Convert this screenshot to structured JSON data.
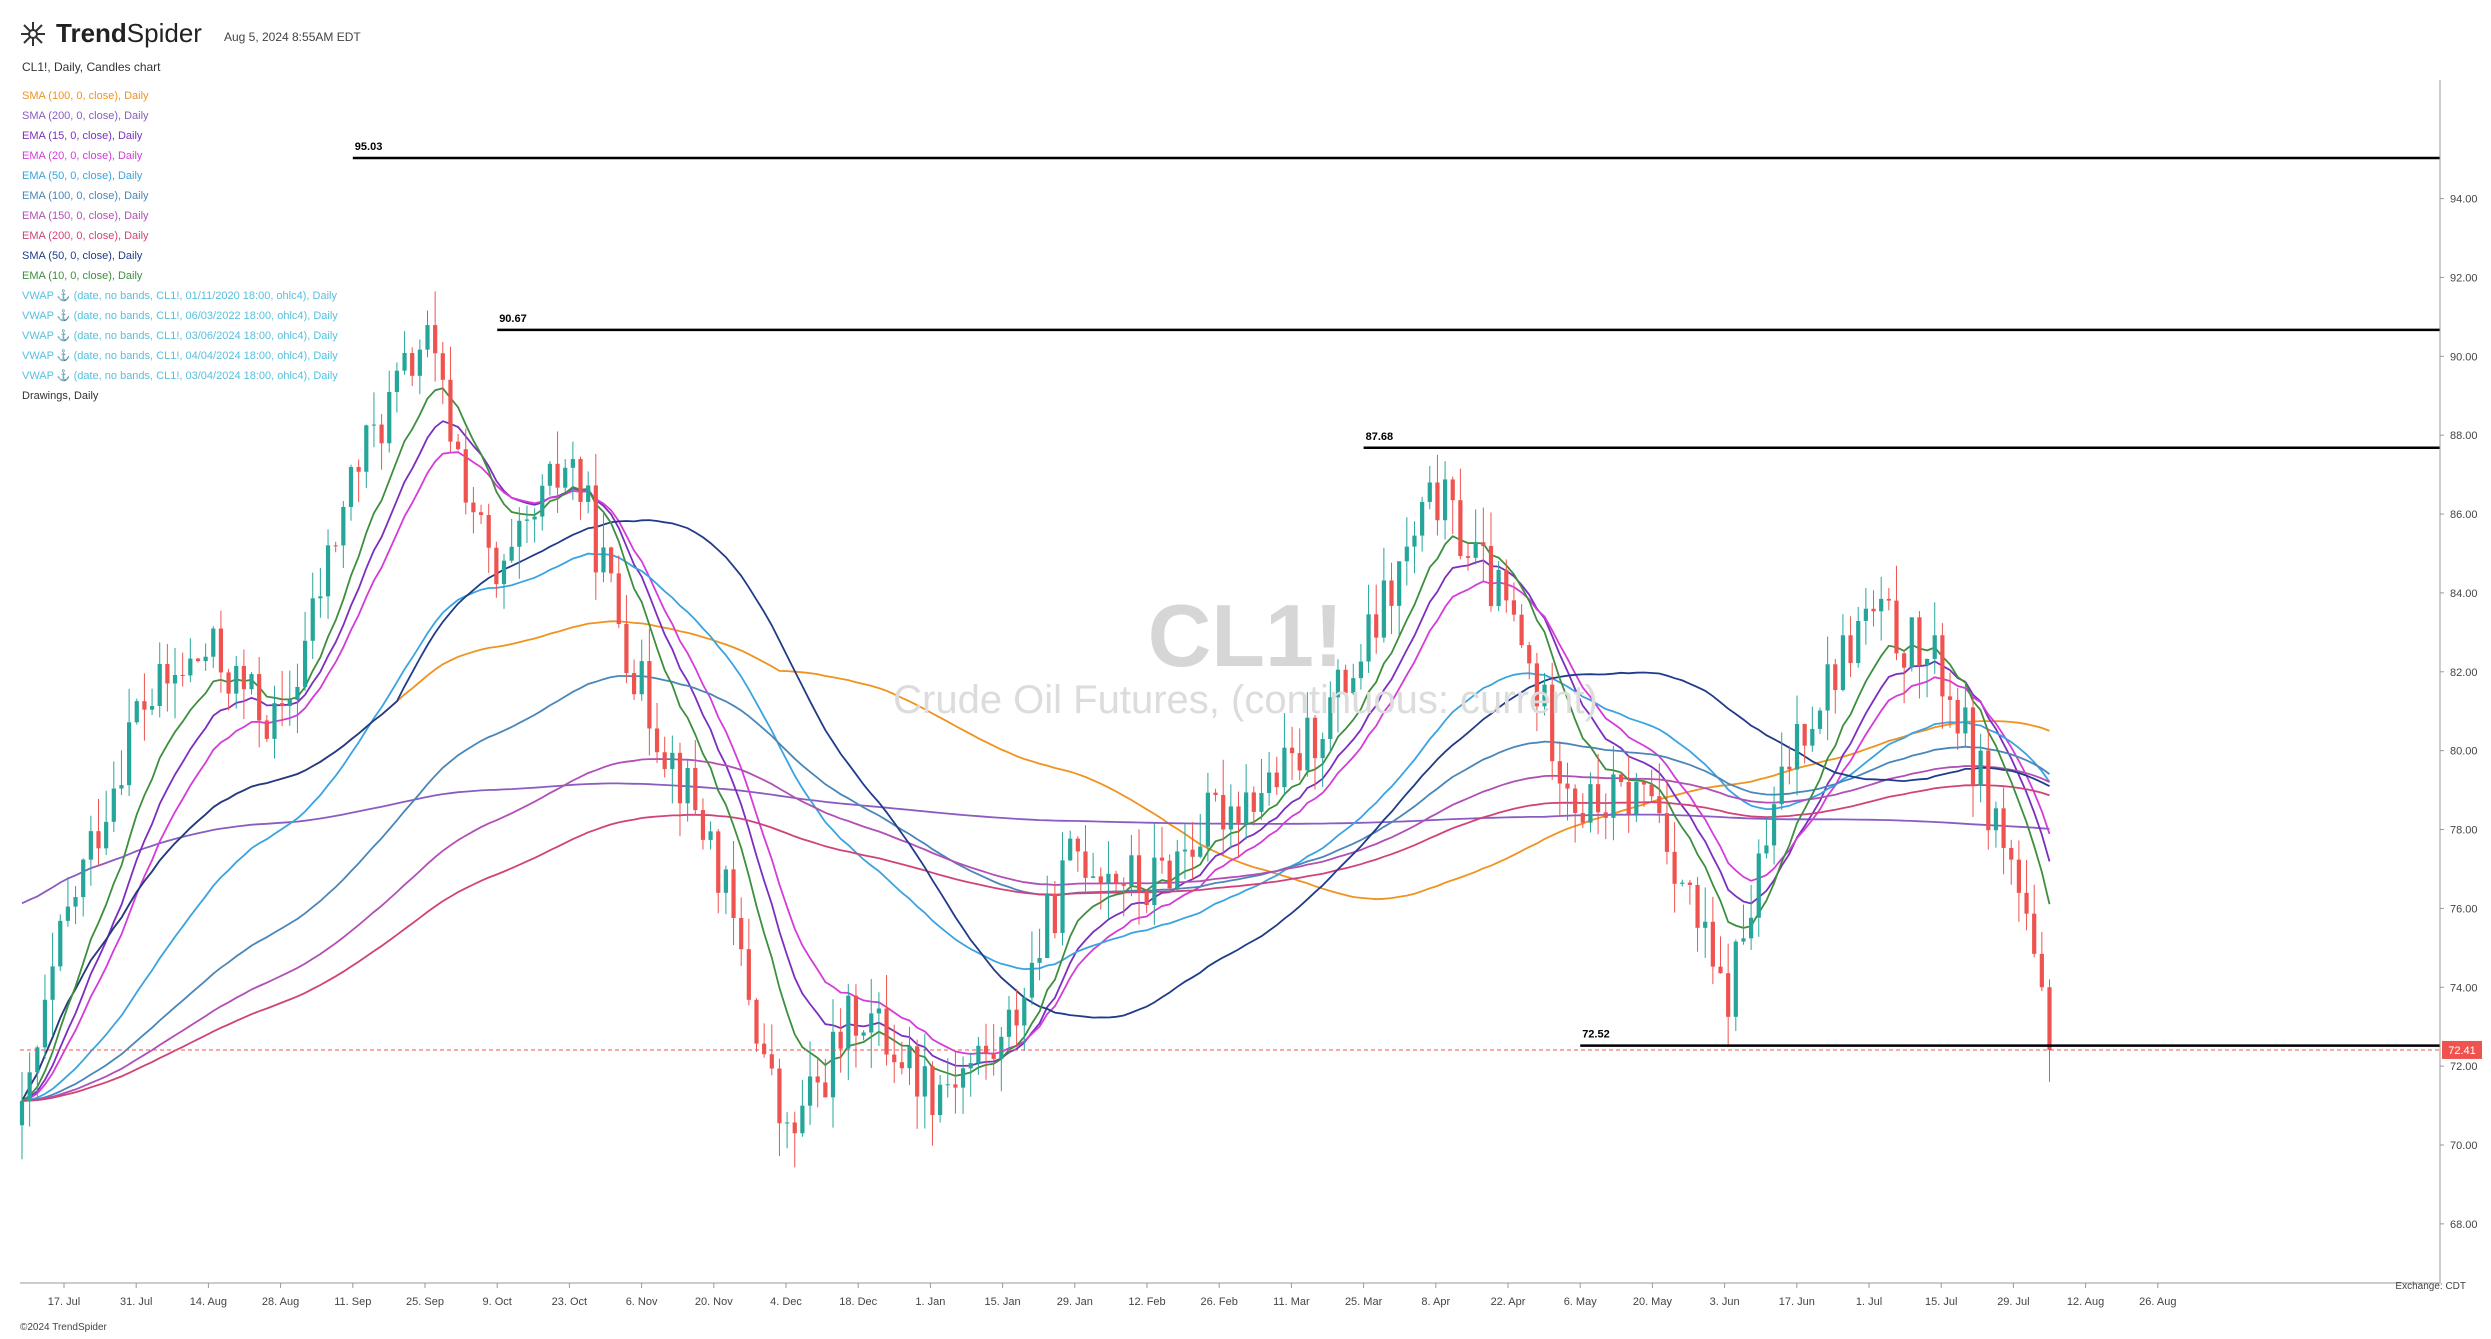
{
  "header": {
    "brand_prefix": "Trend",
    "brand_suffix": "Spider",
    "timestamp": "Aug 5, 2024 8:55AM EDT",
    "chart_title": "CL1!, Daily, Candles chart"
  },
  "legend": [
    {
      "label": "SMA (100, 0, close), Daily",
      "color": "#f0921e"
    },
    {
      "label": "SMA (200, 0, close), Daily",
      "color": "#8a5cc2"
    },
    {
      "label": "EMA (15, 0, close), Daily",
      "color": "#7b2fbf"
    },
    {
      "label": "EMA (20, 0, close), Daily",
      "color": "#d43cd8"
    },
    {
      "label": "EMA (50, 0, close), Daily",
      "color": "#3aa3e0"
    },
    {
      "label": "EMA (100, 0, close), Daily",
      "color": "#4a86b8"
    },
    {
      "label": "EMA (150, 0, close), Daily",
      "color": "#b14fb5"
    },
    {
      "label": "EMA (200, 0, close), Daily",
      "color": "#d0437a"
    },
    {
      "label": "SMA (50, 0, close), Daily",
      "color": "#1f3b8a"
    },
    {
      "label": "EMA (10, 0, close), Daily",
      "color": "#3d8f3d"
    },
    {
      "label": "VWAP ⚓ (date, no bands, CL1!, 01/11/2020 18:00, ohlc4), Daily",
      "color": "#56c0dc"
    },
    {
      "label": "VWAP ⚓ (date, no bands, CL1!, 06/03/2022 18:00, ohlc4), Daily",
      "color": "#56c0dc"
    },
    {
      "label": "VWAP ⚓ (date, no bands, CL1!, 03/06/2024 18:00, ohlc4), Daily",
      "color": "#56c0dc"
    },
    {
      "label": "VWAP ⚓ (date, no bands, CL1!, 04/04/2024 18:00, ohlc4), Daily",
      "color": "#56c0dc"
    },
    {
      "label": "VWAP ⚓ (date, no bands, CL1!, 03/04/2024 18:00, ohlc4), Daily",
      "color": "#56c0dc"
    },
    {
      "label": "Drawings, Daily",
      "color": "#333333"
    }
  ],
  "watermark": {
    "ticker": "CL1!",
    "name": "Crude Oil Futures, (continuous: current)"
  },
  "footer": {
    "copyright": "©2024 TrendSpider",
    "exchange": "Exchange: CDT"
  },
  "colors": {
    "up": "#26a69a",
    "down": "#ef5350",
    "level": "#000000",
    "last_price_bg": "#ef5350"
  },
  "chart_data": {
    "type": "candlestick",
    "y_axis": {
      "min": 66.5,
      "max": 96.5,
      "ticks": [
        "68.00",
        "70.00",
        "72.00",
        "74.00",
        "76.00",
        "78.00",
        "80.00",
        "82.00",
        "84.00",
        "86.00",
        "88.00",
        "90.00",
        "92.00",
        "94.00"
      ]
    },
    "x_axis": {
      "ticks": [
        "17. Jul",
        "31. Jul",
        "14. Aug",
        "28. Aug",
        "11. Sep",
        "25. Sep",
        "9. Oct",
        "23. Oct",
        "6. Nov",
        "20. Nov",
        "4. Dec",
        "18. Dec",
        "1. Jan",
        "15. Jan",
        "29. Jan",
        "12. Feb",
        "26. Feb",
        "11. Mar",
        "25. Mar",
        "8. Apr",
        "22. Apr",
        "6. May",
        "20. May",
        "3. Jun",
        "17. Jun",
        "1. Jul",
        "15. Jul",
        "29. Jul",
        "12. Aug",
        "26. Aug"
      ]
    },
    "levels": [
      {
        "label": "95.03",
        "value": 95.03,
        "start_tick": "11. Sep"
      },
      {
        "label": "90.67",
        "value": 90.67,
        "start_tick": "9. Oct"
      },
      {
        "label": "87.68",
        "value": 87.68,
        "start_tick": "25. Mar"
      },
      {
        "label": "72.52",
        "value": 72.52,
        "start_tick": "6. May"
      }
    ],
    "last_price": {
      "label": "72.41",
      "value": 72.41
    },
    "close_path": [
      [
        "17. Jul",
        75.5
      ],
      [
        "31. Jul",
        81.0
      ],
      [
        "14. Aug",
        82.5
      ],
      [
        "28. Aug",
        80.5
      ],
      [
        "11. Sep",
        87.0
      ],
      [
        "25. Sep",
        90.5
      ],
      [
        "9. Oct",
        84.0
      ],
      [
        "23. Oct",
        87.5
      ],
      [
        "6. Nov",
        81.5
      ],
      [
        "20. Nov",
        77.5
      ],
      [
        "4. Dec",
        70.0
      ],
      [
        "18. Dec",
        73.5
      ],
      [
        "1. Jan",
        71.5
      ],
      [
        "15. Jan",
        72.5
      ],
      [
        "29. Jan",
        77.5
      ],
      [
        "12. Feb",
        76.5
      ],
      [
        "26. Feb",
        78.5
      ],
      [
        "11. Mar",
        79.5
      ],
      [
        "25. Mar",
        82.5
      ],
      [
        "8. Apr",
        86.5
      ],
      [
        "22. Apr",
        83.5
      ],
      [
        "6. May",
        78.5
      ],
      [
        "20. May",
        79.0
      ],
      [
        "3. Jun",
        73.5
      ],
      [
        "17. Jun",
        80.5
      ],
      [
        "1. Jul",
        83.5
      ],
      [
        "15. Jul",
        82.0
      ],
      [
        "29. Jul",
        77.0
      ],
      [
        "5. Aug",
        72.4
      ]
    ]
  }
}
